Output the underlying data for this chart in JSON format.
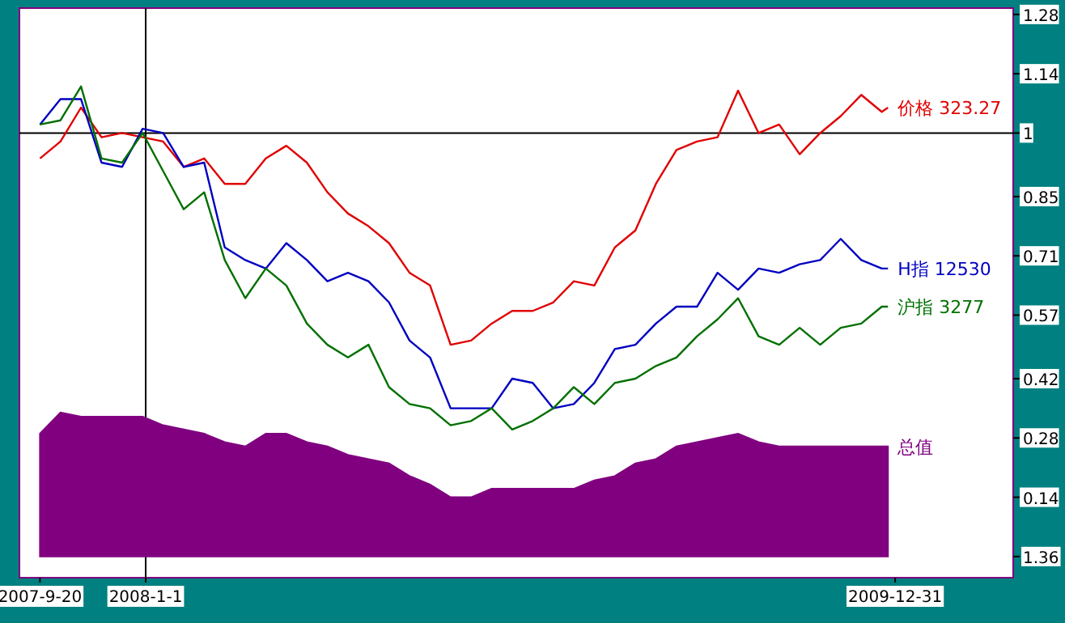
{
  "chart_data": {
    "type": "line",
    "legend": false,
    "grid": false,
    "x": [
      "2007-09-20",
      "2007-10-10",
      "2007-10-30",
      "2007-11-19",
      "2007-12-09",
      "2007-12-29",
      "2008-01-18",
      "2008-02-07",
      "2008-02-27",
      "2008-03-18",
      "2008-04-07",
      "2008-04-27",
      "2008-05-17",
      "2008-06-06",
      "2008-06-26",
      "2008-07-16",
      "2008-08-05",
      "2008-08-25",
      "2008-09-14",
      "2008-10-04",
      "2008-10-24",
      "2008-11-13",
      "2008-12-03",
      "2008-12-23",
      "2009-01-12",
      "2009-02-01",
      "2009-02-21",
      "2009-03-13",
      "2009-04-02",
      "2009-04-22",
      "2009-05-12",
      "2009-06-01",
      "2009-06-21",
      "2009-07-11",
      "2009-07-31",
      "2009-08-20",
      "2009-09-09",
      "2009-09-29",
      "2009-10-19",
      "2009-11-08",
      "2009-11-28",
      "2009-12-18",
      "2009-12-24"
    ],
    "xlim": [
      "2007-08-31",
      "2010-04-25"
    ],
    "xticks": [
      {
        "value": "2007-09-20",
        "label": "2007-9-20"
      },
      {
        "value": "2008-01-01",
        "label": "2008-1-1"
      },
      {
        "value": "2009-12-31",
        "label": "2009-12-31"
      }
    ],
    "ylim": [
      -0.05,
      1.295
    ],
    "yticks": [
      1.28,
      1.14,
      1,
      0.85,
      0.71,
      0.57,
      0.42,
      0.28,
      0.14,
      {
        "value": 0,
        "label": null
      }
    ],
    "annotations": [
      "1.36"
    ],
    "series": [
      {
        "name": "总值",
        "type": "area",
        "color": "#800080",
        "values": [
          0.29,
          0.34,
          0.33,
          0.33,
          0.33,
          0.33,
          0.31,
          0.3,
          0.29,
          0.27,
          0.26,
          0.29,
          0.29,
          0.27,
          0.26,
          0.24,
          0.23,
          0.22,
          0.19,
          0.17,
          0.14,
          0.14,
          0.16,
          0.16,
          0.16,
          0.16,
          0.16,
          0.18,
          0.19,
          0.22,
          0.23,
          0.26,
          0.27,
          0.28,
          0.29,
          0.27,
          0.26,
          0.26,
          0.26,
          0.26,
          0.26,
          0.26,
          0.26
        ]
      },
      {
        "name": "价格 323.27",
        "color": "#e00000",
        "values": [
          0.94,
          0.98,
          1.06,
          0.99,
          1.0,
          0.99,
          0.98,
          0.92,
          0.94,
          0.88,
          0.88,
          0.94,
          0.97,
          0.93,
          0.86,
          0.81,
          0.78,
          0.74,
          0.67,
          0.64,
          0.5,
          0.51,
          0.55,
          0.58,
          0.58,
          0.6,
          0.65,
          0.64,
          0.73,
          0.77,
          0.88,
          0.96,
          0.98,
          0.99,
          1.1,
          1.0,
          1.02,
          0.95,
          1.0,
          1.04,
          1.09,
          1.05,
          1.06
        ]
      },
      {
        "name": "H指 12530",
        "color": "#0000c0",
        "values": [
          1.02,
          1.08,
          1.08,
          0.93,
          0.92,
          1.01,
          1.0,
          0.92,
          0.93,
          0.73,
          0.7,
          0.68,
          0.74,
          0.7,
          0.65,
          0.67,
          0.65,
          0.6,
          0.51,
          0.47,
          0.35,
          0.35,
          0.35,
          0.42,
          0.41,
          0.35,
          0.36,
          0.41,
          0.49,
          0.5,
          0.55,
          0.59,
          0.59,
          0.67,
          0.63,
          0.68,
          0.67,
          0.69,
          0.7,
          0.75,
          0.7,
          0.68,
          0.68
        ]
      },
      {
        "name": "沪指 3277",
        "color": "#007000",
        "values": [
          1.02,
          1.03,
          1.11,
          0.94,
          0.93,
          1.0,
          0.91,
          0.82,
          0.86,
          0.7,
          0.61,
          0.68,
          0.64,
          0.55,
          0.5,
          0.47,
          0.5,
          0.4,
          0.36,
          0.35,
          0.31,
          0.32,
          0.35,
          0.3,
          0.32,
          0.35,
          0.4,
          0.36,
          0.41,
          0.42,
          0.45,
          0.47,
          0.52,
          0.56,
          0.61,
          0.52,
          0.5,
          0.54,
          0.5,
          0.54,
          0.55,
          0.59,
          0.59
        ]
      }
    ],
    "ref_lines": [
      {
        "axis": "y",
        "value": 1,
        "color": "#000000"
      },
      {
        "axis": "x",
        "value": "2008-01-01",
        "color": "#000000"
      }
    ]
  }
}
